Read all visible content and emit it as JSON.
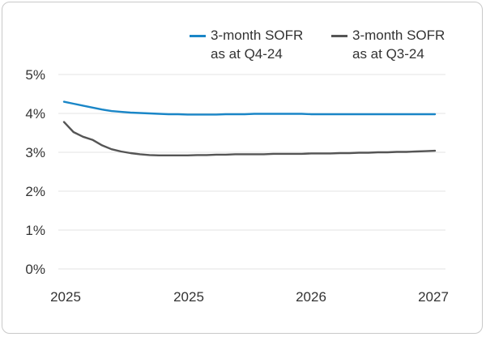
{
  "chart_data": {
    "type": "line",
    "title": "",
    "xlabel": "",
    "ylabel": "",
    "ylim": [
      0,
      5
    ],
    "y_ticks": [
      "0%",
      "1%",
      "2%",
      "3%",
      "4%",
      "5%"
    ],
    "x_tick_labels": [
      "2025",
      "2025",
      "2026",
      "2027"
    ],
    "x": [
      0,
      1,
      2,
      3,
      4,
      5,
      6,
      7,
      8,
      9,
      10,
      11,
      12,
      13,
      14,
      15,
      16,
      17,
      18,
      19,
      20,
      21,
      22,
      23,
      24,
      25,
      26,
      27,
      28,
      29,
      30,
      31,
      32,
      33,
      34,
      35,
      36,
      37,
      38,
      39
    ],
    "series": [
      {
        "name": "3-month SOFR as at Q4-24",
        "name_line1": "3-month SOFR",
        "name_line2": "as at Q4-24",
        "color": "#1a86c7",
        "values": [
          4.3,
          4.25,
          4.2,
          4.15,
          4.1,
          4.06,
          4.04,
          4.02,
          4.01,
          4.0,
          3.99,
          3.98,
          3.98,
          3.97,
          3.97,
          3.97,
          3.97,
          3.98,
          3.98,
          3.98,
          3.99,
          3.99,
          3.99,
          3.99,
          3.99,
          3.99,
          3.98,
          3.98,
          3.98,
          3.98,
          3.98,
          3.98,
          3.98,
          3.98,
          3.98,
          3.98,
          3.98,
          3.98,
          3.98,
          3.98
        ]
      },
      {
        "name": "3-month SOFR as at Q3-24",
        "name_line1": "3-month SOFR",
        "name_line2": "as at Q3-24",
        "color": "#555555",
        "values": [
          3.78,
          3.52,
          3.4,
          3.32,
          3.18,
          3.08,
          3.02,
          2.98,
          2.95,
          2.93,
          2.92,
          2.92,
          2.92,
          2.92,
          2.93,
          2.93,
          2.94,
          2.94,
          2.95,
          2.95,
          2.95,
          2.95,
          2.96,
          2.96,
          2.96,
          2.96,
          2.97,
          2.97,
          2.97,
          2.98,
          2.98,
          2.99,
          2.99,
          3.0,
          3.0,
          3.01,
          3.01,
          3.02,
          3.03,
          3.04
        ]
      }
    ]
  }
}
